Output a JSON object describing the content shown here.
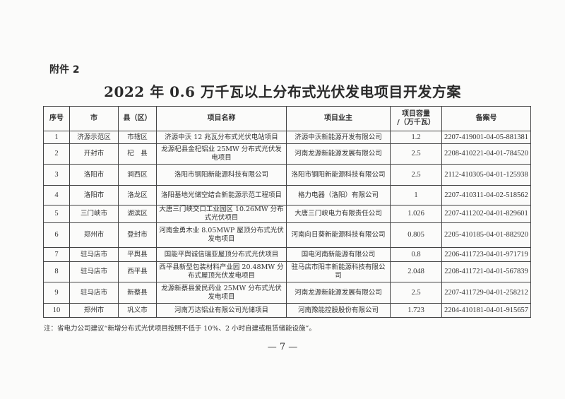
{
  "attachment_label": "附件 2",
  "title": "2022 年 0.6 万千瓦以上分布式光伏发电项目开发方案",
  "table": {
    "headers": [
      "序号",
      "市",
      "县（区）",
      "项目名称",
      "项目业主",
      "项目容量\n/（万千瓦）",
      "备案号"
    ],
    "rows": [
      [
        "1",
        "济源示范区",
        "市辖区",
        "济源中沃 12 兆瓦分布式光伏电站项目",
        "济源中沃新能源开发有限公司",
        "1.2",
        "2207-419001-04-05-881381"
      ],
      [
        "2",
        "开封市",
        "杞　县",
        "龙源杞县金杞铝业 25MW 分布式光伏发电项目",
        "河南龙源新能源发展有限公司",
        "2.5",
        "2208-410221-04-01-784520"
      ],
      [
        "3",
        "洛阳市",
        "涧西区",
        "洛阳市钢阳新能源科技有限公司",
        "洛阳市钢阳新能源科技有限公司",
        "2.5",
        "2112-410305-04-01-125938"
      ],
      [
        "4",
        "洛阳市",
        "洛龙区",
        "洛阳基地光储空结合新能源示范工程项目",
        "格力电器（洛阳）有限公司",
        "1",
        "2207-410311-04-02-518562"
      ],
      [
        "5",
        "三门峡市",
        "湖滨区",
        "大唐三门峡交口工业园区 10.26MW 分布式光伏项目",
        "大唐三门峡电力有限责任公司",
        "1.026",
        "2207-411202-04-01-829601"
      ],
      [
        "6",
        "郑州市",
        "登封市",
        "河南金勇木业 8.05MWP 屋顶分布式光伏发电项目",
        "河南向日葵新能源科技有限公司",
        "0.805",
        "2205-410185-04-01-882920"
      ],
      [
        "7",
        "驻马店市",
        "平舆县",
        "国能平舆诚信瑞亚屋顶分布式光伏项目",
        "国电河南新能源有限公司",
        "0.8",
        "2206-411723-04-01-971719"
      ],
      [
        "8",
        "驻马店市",
        "西平县",
        "西平县新型包装材料产业园 20.48MW 分布式屋顶光伏发电项目",
        "驻马店市阳丰新能源科技有限公司",
        "2.048",
        "2208-411721-04-01-567839"
      ],
      [
        "9",
        "驻马店市",
        "新蔡县",
        "龙源新蔡县爱民药业 25MW 分布式光伏发电项目",
        "河南龙源新能源发展有限公司",
        "2.5",
        "2207-411729-04-01-258212"
      ],
      [
        "10",
        "郑州市",
        "巩义市",
        "河南万达铝业有限公司光储项目",
        "河南豫能控股股份有限公司",
        "1.723",
        "2204-410181-04-01-915657"
      ]
    ]
  },
  "note": "注：省电力公司建议“新增分布式光伏项目按照不低于 10%、2 小时自建或租赁储能设施”。",
  "page_number": "— 7 —"
}
